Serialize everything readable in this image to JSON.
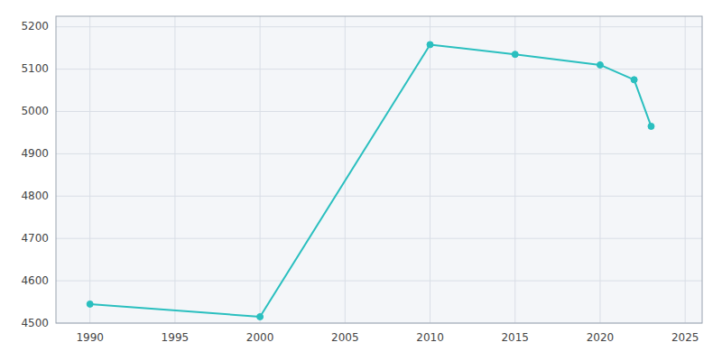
{
  "chart_data": {
    "type": "line",
    "x": [
      1990,
      2000,
      2010,
      2015,
      2020,
      2022,
      2023
    ],
    "values": [
      4545,
      4515,
      5158,
      5135,
      5110,
      5075,
      4965
    ],
    "color": "#2ABFBF",
    "marker": "circle",
    "xlim": [
      1988,
      2026
    ],
    "ylim": [
      4500,
      5225
    ],
    "xticks": [
      1990,
      1995,
      2000,
      2005,
      2010,
      2015,
      2020,
      2025
    ],
    "yticks": [
      4500,
      4600,
      4700,
      4800,
      4900,
      5000,
      5100,
      5200
    ],
    "grid": true
  }
}
